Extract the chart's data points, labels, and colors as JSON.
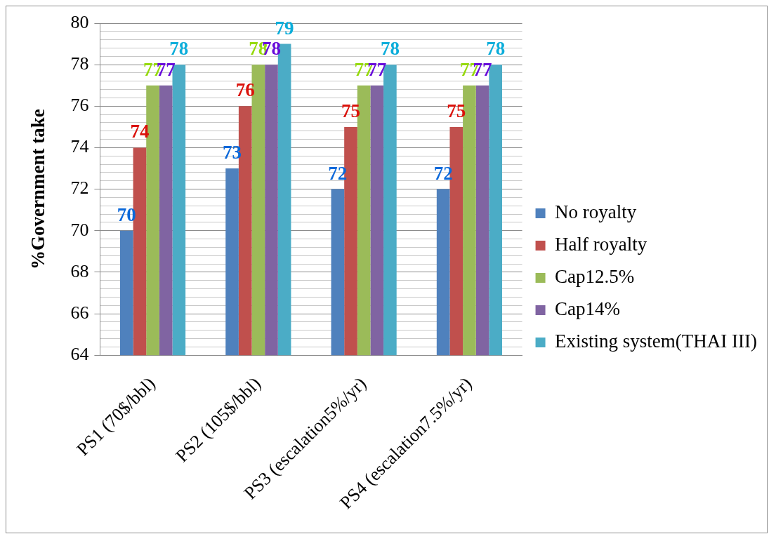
{
  "chart_data": {
    "type": "bar",
    "ylabel": "%Government take",
    "categories": [
      "PS1 (70$/bbl)",
      "PS2 (105$/bbl)",
      "PS3 (escalation5%/yr)",
      "PS4 (escalation7.5%/yr)"
    ],
    "series": [
      {
        "name": "No royalty",
        "color": "#4f81bd",
        "values": [
          70,
          73,
          72,
          72
        ]
      },
      {
        "name": "Half royalty",
        "color": "#c0504d",
        "values": [
          74,
          76,
          75,
          75
        ]
      },
      {
        "name": "Cap12.5%",
        "color": "#9bbb59",
        "values": [
          77,
          78,
          77,
          77
        ]
      },
      {
        "name": "Cap14%",
        "color": "#8064a2",
        "values": [
          77,
          78,
          77,
          77
        ]
      },
      {
        "name": "Existing system(THAI III)",
        "color": "#4bacc6",
        "values": [
          78,
          79,
          78,
          78
        ]
      }
    ],
    "ylim": [
      64,
      80
    ],
    "yticks": [
      64,
      {
        "value": 64.4,
        "label": null
      },
      {
        "value": 64.8,
        "label": null
      },
      {
        "value": 65.2,
        "label": null
      },
      {
        "value": 65.6,
        "label": null
      },
      66,
      {
        "value": 66.4,
        "label": null
      },
      {
        "value": 66.8,
        "label": null
      },
      {
        "value": 67.2,
        "label": null
      },
      {
        "value": 67.6,
        "label": null
      },
      68,
      {
        "value": 68.4,
        "label": null
      },
      {
        "value": 68.8,
        "label": null
      },
      {
        "value": 69.2,
        "label": null
      },
      {
        "value": 69.6,
        "label": null
      },
      70,
      {
        "value": 70.4,
        "label": null
      },
      {
        "value": 70.8,
        "label": null
      },
      {
        "value": 71.2,
        "label": null
      },
      {
        "value": 71.6,
        "label": null
      },
      72,
      {
        "value": 72.4,
        "label": null
      },
      {
        "value": 72.8,
        "label": null
      },
      {
        "value": 73.2,
        "label": null
      },
      {
        "value": 73.6,
        "label": null
      },
      74,
      {
        "value": 74.4,
        "label": null
      },
      {
        "value": 74.8,
        "label": null
      },
      {
        "value": 75.2,
        "label": null
      },
      {
        "value": 75.6,
        "label": null
      },
      76,
      {
        "value": 76.4,
        "label": null
      },
      {
        "value": 76.8,
        "label": null
      },
      {
        "value": 77.2,
        "label": null
      },
      {
        "value": 77.6,
        "label": null
      },
      78,
      {
        "value": 78.4,
        "label": null
      },
      {
        "value": 78.8,
        "label": null
      },
      {
        "value": 79.2,
        "label": null
      },
      {
        "value": 79.6,
        "label": null
      },
      80
    ],
    "grid": "y",
    "legend": "right",
    "data_labels": true
  }
}
